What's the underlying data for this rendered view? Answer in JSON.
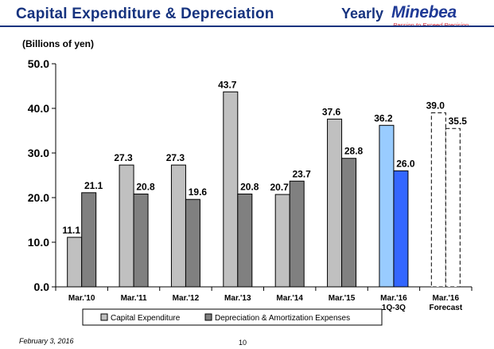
{
  "header": {
    "title": "Capital Expenditure & Depreciation",
    "period": "Yearly",
    "brand": "Minebea",
    "tagline": "Passion to Exceed Precision"
  },
  "unit_label": "(Billions of yen)",
  "footer": {
    "date": "February 3, 2016",
    "page": "10"
  },
  "colors": {
    "capex": "#c0c0c0",
    "depreciation": "#808080",
    "capex_1q3q": "#99ccff",
    "depreciation_1q3q": "#3366ff",
    "forecast_fill": "#ffffff",
    "title": "#16337f"
  },
  "chart_data": {
    "type": "bar",
    "title": "Capital Expenditure & Depreciation",
    "ylabel": "(Billions of yen)",
    "ylim": [
      0,
      50
    ],
    "yticks": [
      "0.0",
      "10.0",
      "20.0",
      "30.0",
      "40.0",
      "50.0"
    ],
    "categories": [
      [
        "Mar.'10"
      ],
      [
        "Mar.'11"
      ],
      [
        "Mar.'12"
      ],
      [
        "Mar.'13"
      ],
      [
        "Mar.'14"
      ],
      [
        "Mar.'15"
      ],
      [
        "Mar.'16",
        "1Q-3Q"
      ],
      [
        "Mar.'16",
        "Forecast"
      ]
    ],
    "series": [
      {
        "name": "Capital Expenditure",
        "values": [
          11.1,
          27.3,
          27.3,
          43.7,
          20.7,
          37.6,
          36.2,
          39.0
        ],
        "labels": [
          "11.1",
          "27.3",
          "27.3",
          "43.7",
          "20.7",
          "37.6",
          "36.2",
          "39.0"
        ]
      },
      {
        "name": "Depreciation & Amortization Expenses",
        "values": [
          21.1,
          20.8,
          19.6,
          20.8,
          23.7,
          28.8,
          26.0,
          35.5
        ],
        "labels": [
          "21.1",
          "20.8",
          "19.6",
          "20.8",
          "23.7",
          "28.8",
          "26.0",
          "35.5"
        ]
      }
    ],
    "legend": {
      "position": "bottom",
      "items": [
        "Capital Expenditure",
        "Depreciation & Amortization Expenses"
      ]
    },
    "grid": false
  }
}
